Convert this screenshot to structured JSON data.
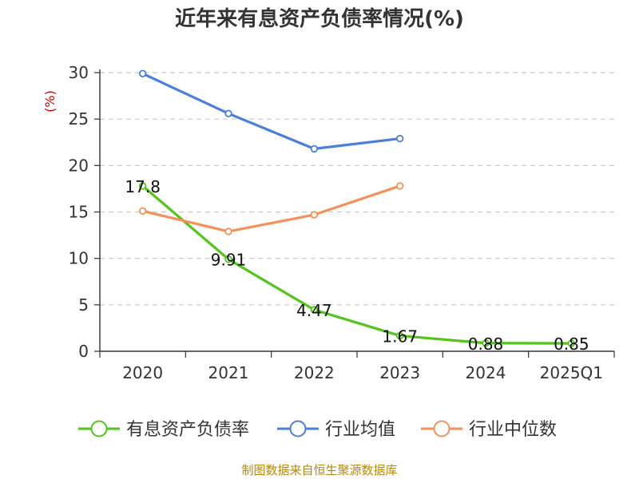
{
  "chart_data": {
    "type": "line",
    "title": "近年来有息资产负债率情况(%)",
    "ylabel": "(%)",
    "xlabel": "",
    "categories": [
      "2020",
      "2021",
      "2022",
      "2023",
      "2024",
      "2025Q1"
    ],
    "ylim": [
      0,
      30
    ],
    "yticks": [
      0,
      5,
      10,
      15,
      20,
      25,
      30
    ],
    "grid": true,
    "legend_position": "bottom",
    "series": [
      {
        "name": "有息资产负债率",
        "values": [
          17.8,
          9.91,
          4.47,
          1.67,
          0.88,
          0.85
        ],
        "labels": [
          "17.8",
          "9.91",
          "4.47",
          "1.67",
          "0.88",
          "0.85"
        ],
        "color": "#52c41a"
      },
      {
        "name": "行业均值",
        "values": [
          29.9,
          25.6,
          21.8,
          22.9,
          null,
          null
        ],
        "color": "#4a7fdc"
      },
      {
        "name": "行业中位数",
        "values": [
          15.1,
          12.9,
          14.7,
          17.8,
          null,
          null
        ],
        "color": "#f5905a"
      }
    ]
  },
  "source": "制图数据来自恒生聚源数据库"
}
